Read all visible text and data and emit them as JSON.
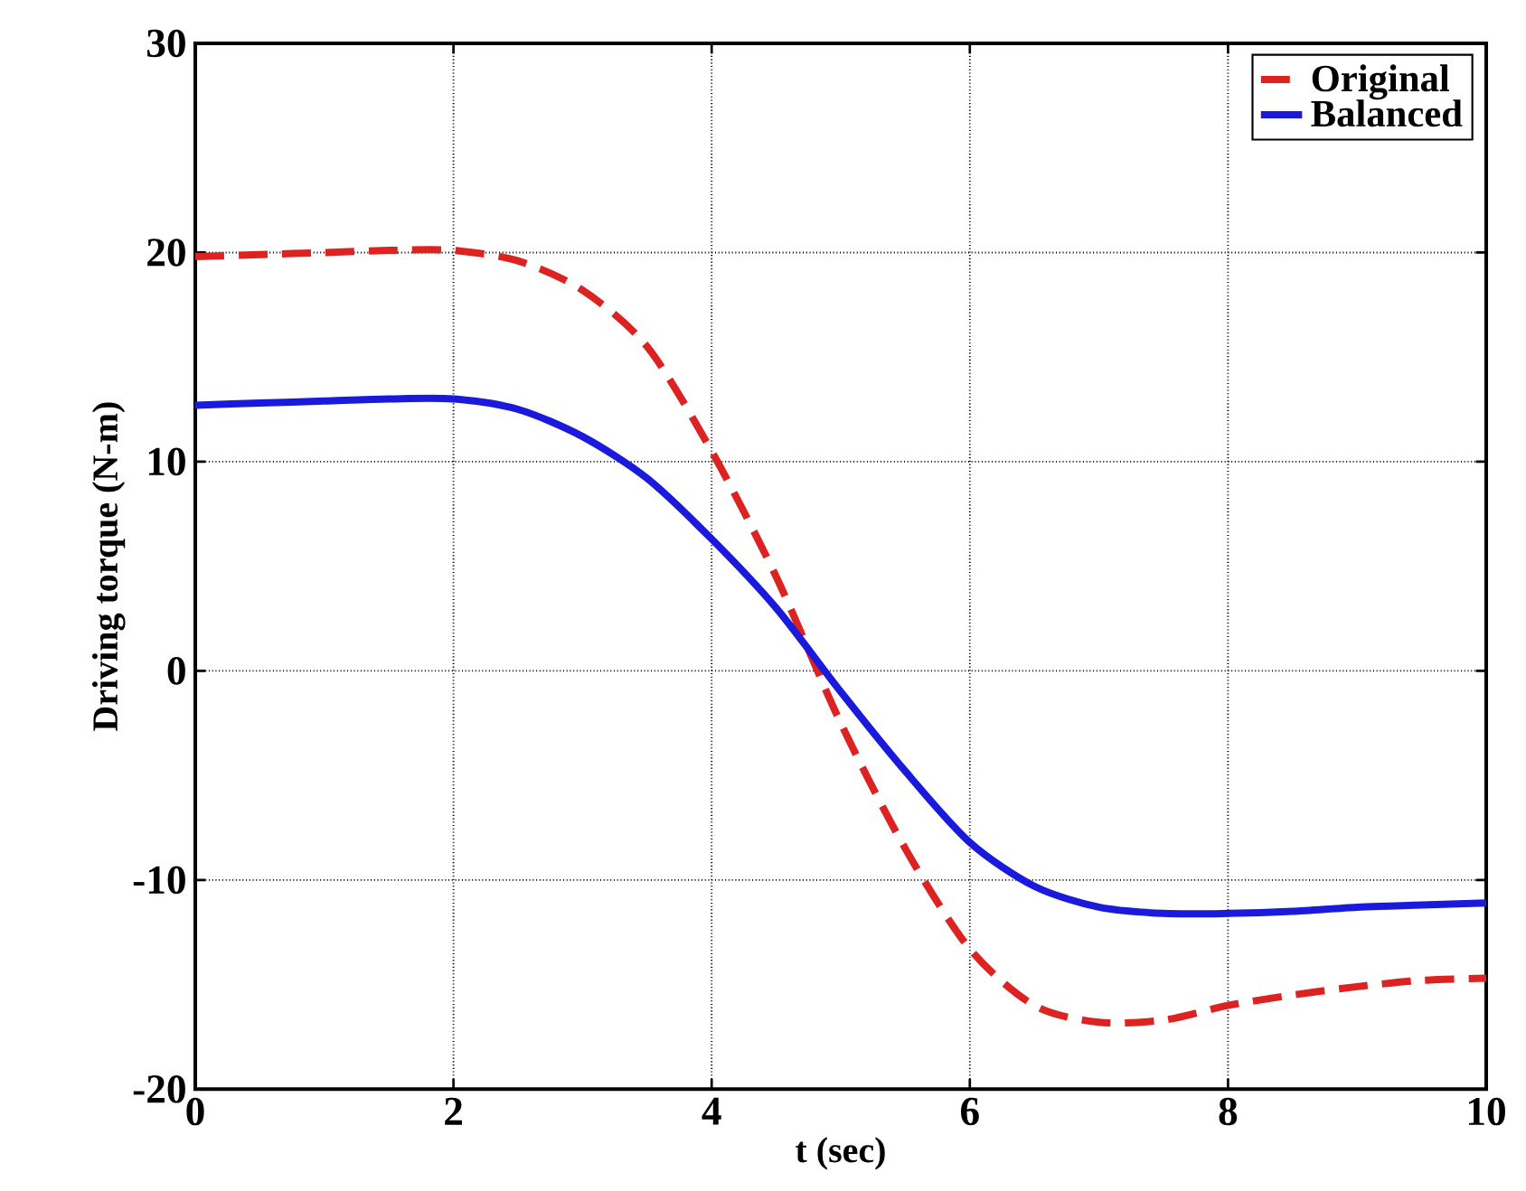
{
  "chart_data": {
    "type": "line",
    "xlabel": "t (sec)",
    "ylabel": "Driving torque (N-m)",
    "xlim": [
      0,
      10
    ],
    "ylim": [
      -20,
      30
    ],
    "xticks": [
      0,
      2,
      4,
      6,
      8,
      10
    ],
    "yticks": [
      -20,
      -10,
      0,
      10,
      20,
      30
    ],
    "grid": true,
    "legend": "top right",
    "x": [
      0,
      0.5,
      1,
      1.5,
      2,
      2.5,
      3,
      3.5,
      4,
      4.5,
      5,
      5.5,
      6,
      6.5,
      7,
      7.5,
      8,
      8.5,
      9,
      9.5,
      10
    ],
    "series": [
      {
        "name": "Original",
        "color": "#dd2222",
        "line_style": "dashed",
        "values": [
          19.8,
          19.9,
          20.0,
          20.1,
          20.1,
          19.6,
          18.2,
          15.5,
          10.5,
          4.5,
          -2.5,
          -8.5,
          -13.3,
          -16,
          -16.8,
          -16.7,
          -16,
          -15.5,
          -15.1,
          -14.8,
          -14.7
        ]
      },
      {
        "name": "Balanced",
        "color": "#1a1adc",
        "line_style": "solid",
        "values": [
          12.7,
          12.8,
          12.9,
          13.0,
          13.0,
          12.5,
          11.2,
          9.2,
          6.3,
          3,
          -1,
          -4.8,
          -8.2,
          -10.3,
          -11.3,
          -11.6,
          -11.6,
          -11.5,
          -11.3,
          -11.2,
          -11.1
        ]
      }
    ]
  }
}
